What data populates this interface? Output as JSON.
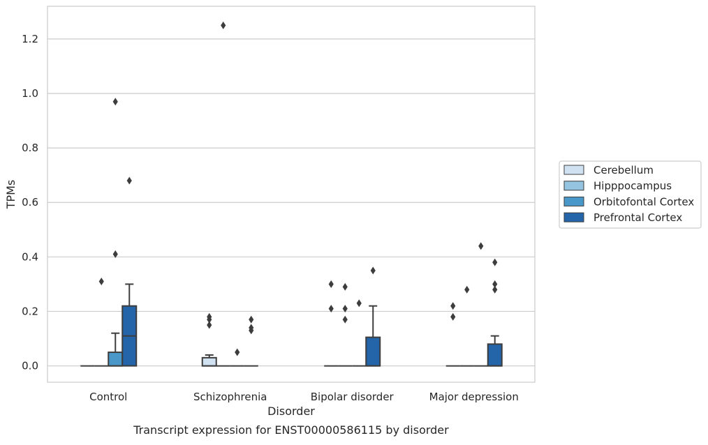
{
  "chart_data": {
    "type": "box",
    "title": "",
    "caption": "Transcript expression for ENST00000586115 by disorder",
    "xlabel": "Disorder",
    "ylabel": "TPMs",
    "ylim": [
      -0.06,
      1.32
    ],
    "yticks": [
      "0.0",
      "0.2",
      "0.4",
      "0.6",
      "0.8",
      "1.0",
      "1.2"
    ],
    "ytick_values": [
      0.0,
      0.2,
      0.4,
      0.6,
      0.8,
      1.0,
      1.2
    ],
    "grid": true,
    "legend_position": "right",
    "categories": [
      "Control",
      "Schizophrenia",
      "Bipolar disorder",
      "Major depression"
    ],
    "series": [
      {
        "name": "Cerebellum",
        "color": "#d0e1f2",
        "boxes": [
          {
            "q1": 0,
            "median": 0,
            "q3": 0,
            "whisker_low": 0,
            "whisker_high": 0,
            "outliers": []
          },
          {
            "q1": 0,
            "median": 0,
            "q3": 0.03,
            "whisker_low": 0,
            "whisker_high": 0.04,
            "outliers": [
              0.15,
              0.17,
              0.18
            ]
          },
          {
            "q1": 0,
            "median": 0,
            "q3": 0,
            "whisker_low": 0,
            "whisker_high": 0,
            "outliers": [
              0.21,
              0.3
            ]
          },
          {
            "q1": 0,
            "median": 0,
            "q3": 0,
            "whisker_low": 0,
            "whisker_high": 0,
            "outliers": [
              0.18,
              0.22
            ]
          }
        ]
      },
      {
        "name": "Hipppocampus",
        "color": "#94c4df",
        "boxes": [
          {
            "q1": 0,
            "median": 0,
            "q3": 0,
            "whisker_low": 0,
            "whisker_high": 0,
            "outliers": [
              0.31
            ]
          },
          {
            "q1": 0,
            "median": 0,
            "q3": 0,
            "whisker_low": 0,
            "whisker_high": 0,
            "outliers": [
              1.25
            ]
          },
          {
            "q1": 0,
            "median": 0,
            "q3": 0,
            "whisker_low": 0,
            "whisker_high": 0,
            "outliers": [
              0.17,
              0.21,
              0.29
            ]
          },
          {
            "q1": 0,
            "median": 0,
            "q3": 0,
            "whisker_low": 0,
            "whisker_high": 0,
            "outliers": [
              0.28
            ]
          }
        ]
      },
      {
        "name": "Orbitofontal Cortex",
        "color": "#4a98c9",
        "boxes": [
          {
            "q1": 0,
            "median": 0,
            "q3": 0.05,
            "whisker_low": 0,
            "whisker_high": 0.12,
            "outliers": [
              0.41,
              0.97
            ]
          },
          {
            "q1": 0,
            "median": 0,
            "q3": 0,
            "whisker_low": 0,
            "whisker_high": 0,
            "outliers": [
              0.05
            ]
          },
          {
            "q1": 0,
            "median": 0,
            "q3": 0,
            "whisker_low": 0,
            "whisker_high": 0,
            "outliers": [
              0.23
            ]
          },
          {
            "q1": 0,
            "median": 0,
            "q3": 0,
            "whisker_low": 0,
            "whisker_high": 0,
            "outliers": [
              0.44
            ]
          }
        ]
      },
      {
        "name": "Prefrontal Cortex",
        "color": "#2464a8",
        "boxes": [
          {
            "q1": 0,
            "median": 0.11,
            "q3": 0.22,
            "whisker_low": 0,
            "whisker_high": 0.3,
            "outliers": [
              0.68
            ]
          },
          {
            "q1": 0,
            "median": 0,
            "q3": 0,
            "whisker_low": 0,
            "whisker_high": 0,
            "outliers": [
              0.13,
              0.14,
              0.17
            ]
          },
          {
            "q1": 0,
            "median": 0,
            "q3": 0.105,
            "whisker_low": 0,
            "whisker_high": 0.22,
            "outliers": [
              0.35
            ]
          },
          {
            "q1": 0,
            "median": 0,
            "q3": 0.08,
            "whisker_low": 0,
            "whisker_high": 0.11,
            "outliers": [
              0.28,
              0.3,
              0.38
            ]
          }
        ]
      }
    ]
  }
}
